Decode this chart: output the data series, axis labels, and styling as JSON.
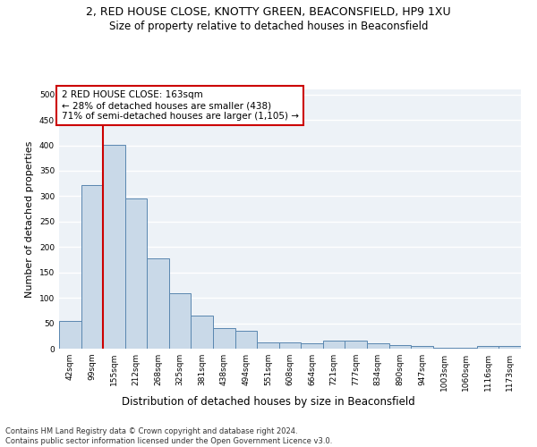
{
  "title": "2, RED HOUSE CLOSE, KNOTTY GREEN, BEACONSFIELD, HP9 1XU",
  "subtitle": "Size of property relative to detached houses in Beaconsfield",
  "xlabel": "Distribution of detached houses by size in Beaconsfield",
  "ylabel": "Number of detached properties",
  "categories": [
    "42sqm",
    "99sqm",
    "155sqm",
    "212sqm",
    "268sqm",
    "325sqm",
    "381sqm",
    "438sqm",
    "494sqm",
    "551sqm",
    "608sqm",
    "664sqm",
    "721sqm",
    "777sqm",
    "834sqm",
    "890sqm",
    "947sqm",
    "1003sqm",
    "1060sqm",
    "1116sqm",
    "1173sqm"
  ],
  "values": [
    55,
    322,
    401,
    296,
    178,
    109,
    65,
    40,
    36,
    13,
    12,
    11,
    16,
    15,
    10,
    7,
    5,
    2,
    1,
    5,
    6
  ],
  "bar_color": "#c9d9e8",
  "bar_edge_color": "#5a87b0",
  "property_label": "2 RED HOUSE CLOSE: 163sqm",
  "annotation_line1": "← 28% of detached houses are smaller (438)",
  "annotation_line2": "71% of semi-detached houses are larger (1,105) →",
  "red_line_color": "#cc0000",
  "annotation_box_edge_color": "#cc0000",
  "ylim": [
    0,
    510
  ],
  "yticks": [
    0,
    50,
    100,
    150,
    200,
    250,
    300,
    350,
    400,
    450,
    500
  ],
  "footer_line1": "Contains HM Land Registry data © Crown copyright and database right 2024.",
  "footer_line2": "Contains public sector information licensed under the Open Government Licence v3.0.",
  "background_color": "#edf2f7",
  "grid_color": "#ffffff",
  "title_fontsize": 9,
  "subtitle_fontsize": 8.5,
  "axis_label_fontsize": 8,
  "tick_fontsize": 6.5,
  "annotation_fontsize": 7.5,
  "footer_fontsize": 6
}
